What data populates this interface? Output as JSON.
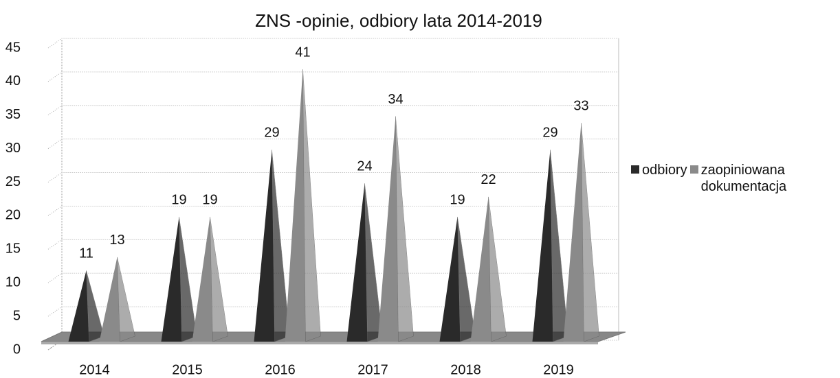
{
  "chart_data": {
    "type": "pyramid",
    "title": "ZNS -opinie, odbiory lata 2014-2019",
    "categories": [
      "2014",
      "2015",
      "2016",
      "2017",
      "2018",
      "2019"
    ],
    "series": [
      {
        "name": "odbiory",
        "color": "#2a2a2a",
        "values": [
          11,
          19,
          29,
          24,
          19,
          29
        ]
      },
      {
        "name": "zaopiniowana dokumentacja",
        "color": "#8a8a8a",
        "values": [
          13,
          19,
          41,
          34,
          22,
          33
        ]
      }
    ],
    "ylim": [
      0,
      45
    ],
    "yticks": [
      0,
      5,
      10,
      15,
      20,
      25,
      30,
      35,
      40,
      45
    ],
    "grid": true,
    "legend": "right"
  }
}
